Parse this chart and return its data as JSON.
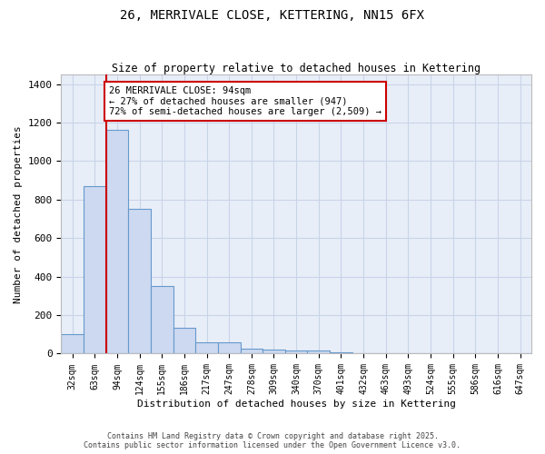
{
  "title": "26, MERRIVALE CLOSE, KETTERING, NN15 6FX",
  "subtitle": "Size of property relative to detached houses in Kettering",
  "xlabel": "Distribution of detached houses by size in Kettering",
  "ylabel": "Number of detached properties",
  "categories": [
    "32sqm",
    "63sqm",
    "94sqm",
    "124sqm",
    "155sqm",
    "186sqm",
    "217sqm",
    "247sqm",
    "278sqm",
    "309sqm",
    "340sqm",
    "370sqm",
    "401sqm",
    "432sqm",
    "463sqm",
    "493sqm",
    "524sqm",
    "555sqm",
    "586sqm",
    "616sqm",
    "647sqm"
  ],
  "values": [
    100,
    870,
    1160,
    750,
    350,
    135,
    60,
    60,
    28,
    20,
    18,
    15,
    8,
    0,
    0,
    0,
    0,
    0,
    0,
    0,
    0
  ],
  "bar_color": "#ccd9f0",
  "bar_edge_color": "#6699cc",
  "red_line_index": 2,
  "annotation_text": "26 MERRIVALE CLOSE: 94sqm\n← 27% of detached houses are smaller (947)\n72% of semi-detached houses are larger (2,509) →",
  "annotation_box_color": "#ffffff",
  "annotation_box_edge": "#cc0000",
  "red_line_color": "#cc0000",
  "ylim": [
    0,
    1450
  ],
  "yticks": [
    0,
    200,
    400,
    600,
    800,
    1000,
    1200,
    1400
  ],
  "grid_color": "#c8d4e8",
  "bg_color": "#e8eef8",
  "footer1": "Contains HM Land Registry data © Crown copyright and database right 2025.",
  "footer2": "Contains public sector information licensed under the Open Government Licence v3.0."
}
